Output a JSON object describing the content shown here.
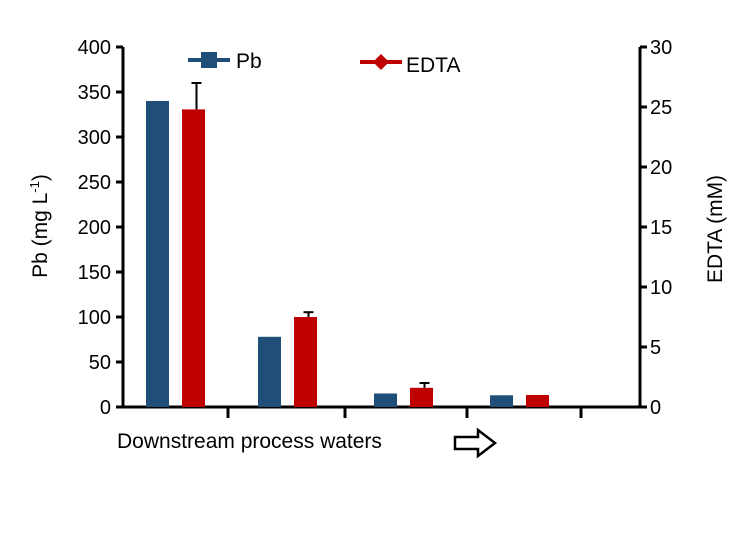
{
  "chart_data": {
    "type": "bar",
    "categories": [
      "",
      "",
      "",
      ""
    ],
    "series": [
      {
        "name": "Pb",
        "axis": "left",
        "color": "#1f4e79",
        "values": [
          340,
          78,
          15,
          13
        ]
      },
      {
        "name": "EDTA",
        "axis": "right",
        "color": "#c00000",
        "values": [
          24.8,
          7.5,
          1.6,
          1.0
        ],
        "error": [
          2.2,
          0.4,
          0.4,
          0
        ]
      }
    ],
    "ylabel": "Pb (mg L",
    "ylabel_sup": "-1",
    "ylabel_end": ")",
    "y2label": "EDTA (mM)",
    "xlabel": "Downstream process waters",
    "ylim": [
      0,
      400
    ],
    "y2lim": [
      0,
      30
    ],
    "yticks": [
      "0",
      "50",
      "100",
      "150",
      "200",
      "250",
      "300",
      "350",
      "400"
    ],
    "y2ticks": [
      "0",
      "5",
      "10",
      "15",
      "20",
      "25",
      "30"
    ],
    "legend_position": "top",
    "grid": false
  }
}
